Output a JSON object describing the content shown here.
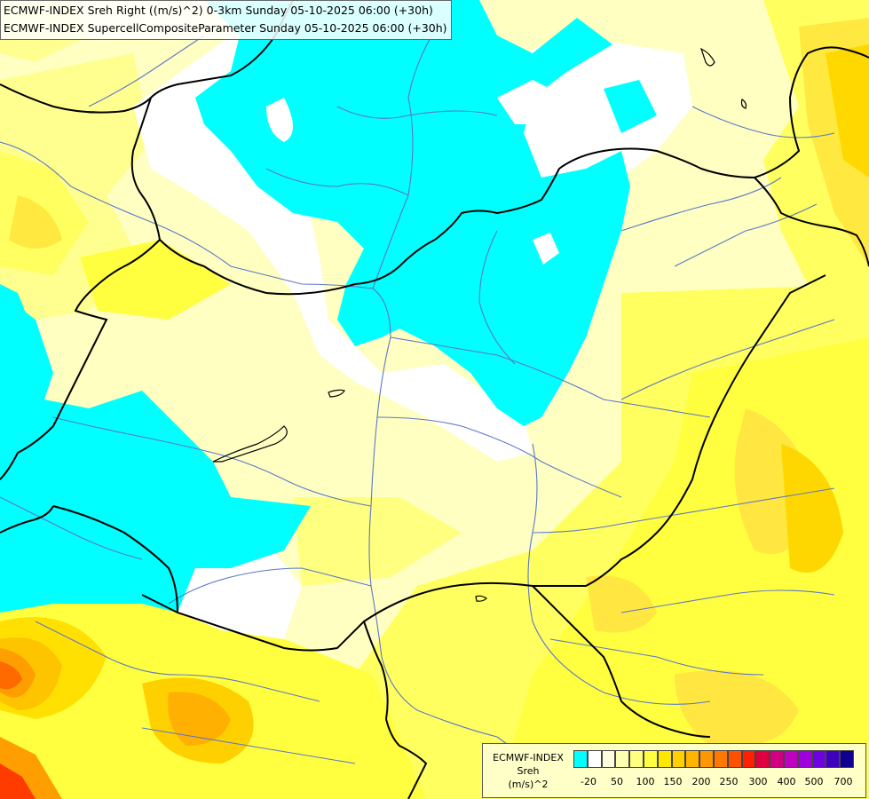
{
  "header": {
    "line1": "ECMWF-INDEX Sreh Right ((m/s)^2) 0-3km Sunday 05-10-2025 06:00 (+30h)",
    "line2": "ECMWF-INDEX SupercellCompositeParameter Sunday 05-10-2025 06:00 (+30h)"
  },
  "legend": {
    "title": [
      "ECMWF-INDEX",
      "Sreh",
      "(m/s)^2"
    ],
    "colors": [
      "#00ffff",
      "#ffffff",
      "#ffffe0",
      "#ffffb0",
      "#ffff80",
      "#ffff40",
      "#ffe800",
      "#ffd000",
      "#ffb400",
      "#ff9800",
      "#ff7800",
      "#ff5000",
      "#ff2000",
      "#e00040",
      "#d00080",
      "#c000c0",
      "#a000e0",
      "#7000e0",
      "#4000c0",
      "#100090"
    ],
    "ticks": [
      "-20",
      "50",
      "100",
      "150",
      "200",
      "250",
      "300",
      "400",
      "500",
      "700"
    ]
  },
  "colors": {
    "cyan": "#00ffff",
    "white": "#ffffff",
    "pale_yellow": "#ffffc2",
    "light_yellow": "#ffff90",
    "yellow": "#ffff40",
    "gold": "#ffd700",
    "orange": "#ff9e00",
    "red": "#ff3b00",
    "border": "#000000",
    "river": "#5a78c8"
  }
}
